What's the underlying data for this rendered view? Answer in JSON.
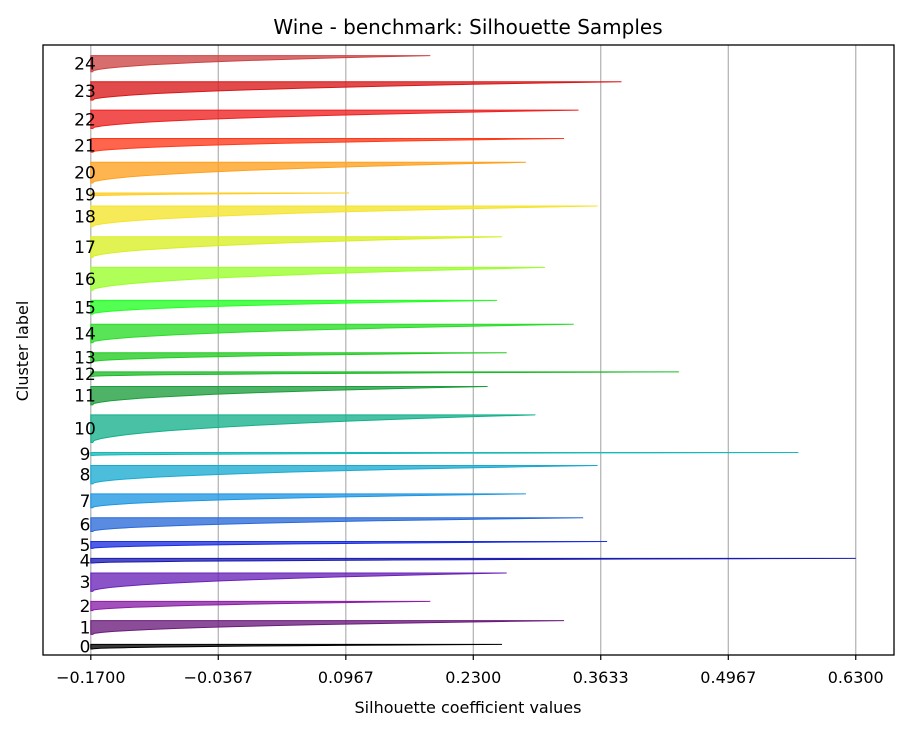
{
  "chart_data": {
    "type": "silhouette",
    "title": "Wine - benchmark: Silhouette Samples",
    "xlabel": "Silhouette coefficient values",
    "ylabel": "Cluster label",
    "xticks": [
      "-0.1700",
      "-0.0367",
      "0.0967",
      "0.2300",
      "0.3633",
      "0.4967",
      "0.6300"
    ],
    "xtick_values": [
      -0.17,
      -0.0367,
      0.0967,
      0.23,
      0.3633,
      0.4967,
      0.63
    ],
    "xlim": [
      -0.22,
      0.67
    ],
    "grid": "vertical",
    "clusters": [
      {
        "label": "0",
        "size": 2,
        "max": 0.26,
        "min": -0.17,
        "color": "#000000"
      },
      {
        "label": "1",
        "size": 6,
        "max": 0.325,
        "min": -0.17,
        "color": "#6a1b7a"
      },
      {
        "label": "2",
        "size": 4,
        "max": 0.185,
        "min": -0.17,
        "color": "#8a1fa6"
      },
      {
        "label": "3",
        "size": 8,
        "max": 0.265,
        "min": -0.17,
        "color": "#6a23b8"
      },
      {
        "label": "4",
        "size": 2,
        "max": 0.63,
        "min": -0.17,
        "color": "#1b1bb0"
      },
      {
        "label": "5",
        "size": 3,
        "max": 0.37,
        "min": -0.17,
        "color": "#1c2ee0"
      },
      {
        "label": "6",
        "size": 6,
        "max": 0.345,
        "min": -0.17,
        "color": "#2a6ad8"
      },
      {
        "label": "7",
        "size": 6,
        "max": 0.285,
        "min": -0.17,
        "color": "#1e96e2"
      },
      {
        "label": "8",
        "size": 8,
        "max": 0.36,
        "min": -0.17,
        "color": "#1aaad0"
      },
      {
        "label": "9",
        "size": 1,
        "max": 0.57,
        "min": -0.17,
        "color": "#17b8b8"
      },
      {
        "label": "10",
        "size": 12,
        "max": 0.295,
        "min": -0.17,
        "color": "#14b08a"
      },
      {
        "label": "11",
        "size": 8,
        "max": 0.245,
        "min": -0.17,
        "color": "#1c9e3c"
      },
      {
        "label": "12",
        "size": 2,
        "max": 0.445,
        "min": -0.17,
        "color": "#1dba28"
      },
      {
        "label": "13",
        "size": 4,
        "max": 0.265,
        "min": -0.17,
        "color": "#22cc22"
      },
      {
        "label": "14",
        "size": 8,
        "max": 0.335,
        "min": -0.17,
        "color": "#2adc28"
      },
      {
        "label": "15",
        "size": 6,
        "max": 0.255,
        "min": -0.17,
        "color": "#22ff22"
      },
      {
        "label": "16",
        "size": 10,
        "max": 0.305,
        "min": -0.17,
        "color": "#9aff2a"
      },
      {
        "label": "17",
        "size": 9,
        "max": 0.26,
        "min": -0.17,
        "color": "#d8ee22"
      },
      {
        "label": "18",
        "size": 9,
        "max": 0.36,
        "min": -0.17,
        "color": "#f4e42a"
      },
      {
        "label": "19",
        "size": 1,
        "max": 0.1,
        "min": -0.17,
        "color": "#ffcc22"
      },
      {
        "label": "20",
        "size": 9,
        "max": 0.285,
        "min": -0.17,
        "color": "#ffa01e"
      },
      {
        "label": "21",
        "size": 6,
        "max": 0.325,
        "min": -0.17,
        "color": "#ff3a1a"
      },
      {
        "label": "22",
        "size": 8,
        "max": 0.34,
        "min": -0.17,
        "color": "#ee2020"
      },
      {
        "label": "23",
        "size": 8,
        "max": 0.385,
        "min": -0.17,
        "color": "#d81818"
      },
      {
        "label": "24",
        "size": 7,
        "max": 0.185,
        "min": -0.17,
        "color": "#cc4444"
      }
    ]
  }
}
